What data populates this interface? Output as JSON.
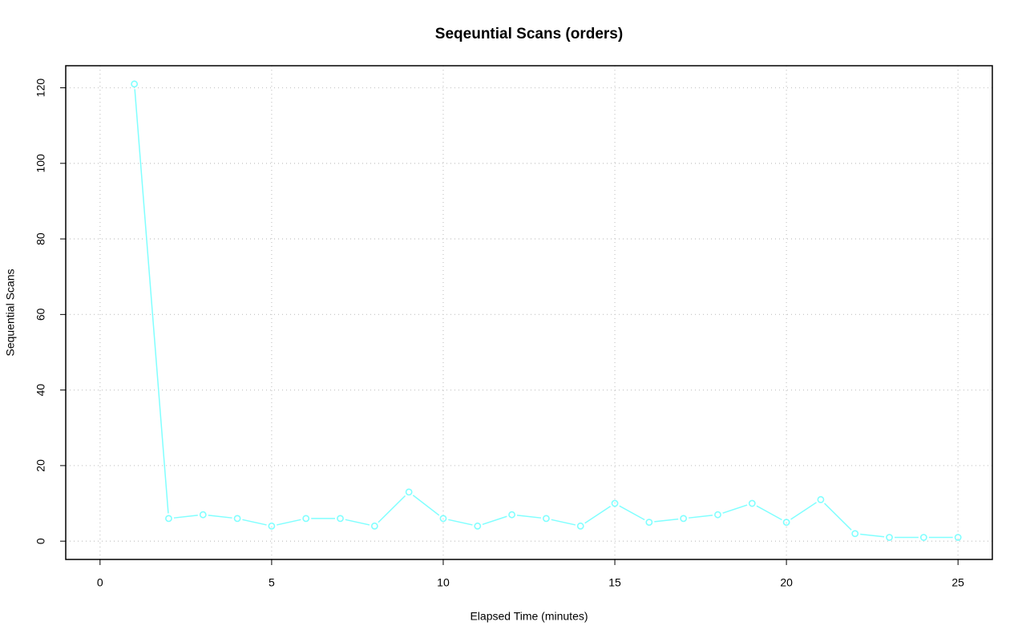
{
  "chart_data": {
    "type": "line",
    "title": "Seqeuntial Scans (orders)",
    "x_label": "Elapsed Time (minutes)",
    "y_label": "Sequential Scans",
    "x": [
      1,
      2,
      3,
      4,
      5,
      6,
      7,
      8,
      9,
      10,
      11,
      12,
      13,
      14,
      15,
      16,
      17,
      18,
      19,
      20,
      21,
      22,
      23,
      24,
      25
    ],
    "values": [
      121,
      6,
      7,
      6,
      4,
      6,
      6,
      4,
      13,
      6,
      4,
      7,
      6,
      4,
      10,
      5,
      6,
      7,
      10,
      5,
      11,
      2,
      1,
      1,
      1
    ],
    "color": "#80ffff",
    "xlim": [
      -1,
      26
    ],
    "xticks": [
      0,
      5,
      10,
      15,
      20,
      25
    ],
    "ylim": [
      -4.84,
      125.84
    ],
    "yticks": [
      0,
      20,
      40,
      60,
      80,
      100,
      120
    ],
    "grid": true
  }
}
